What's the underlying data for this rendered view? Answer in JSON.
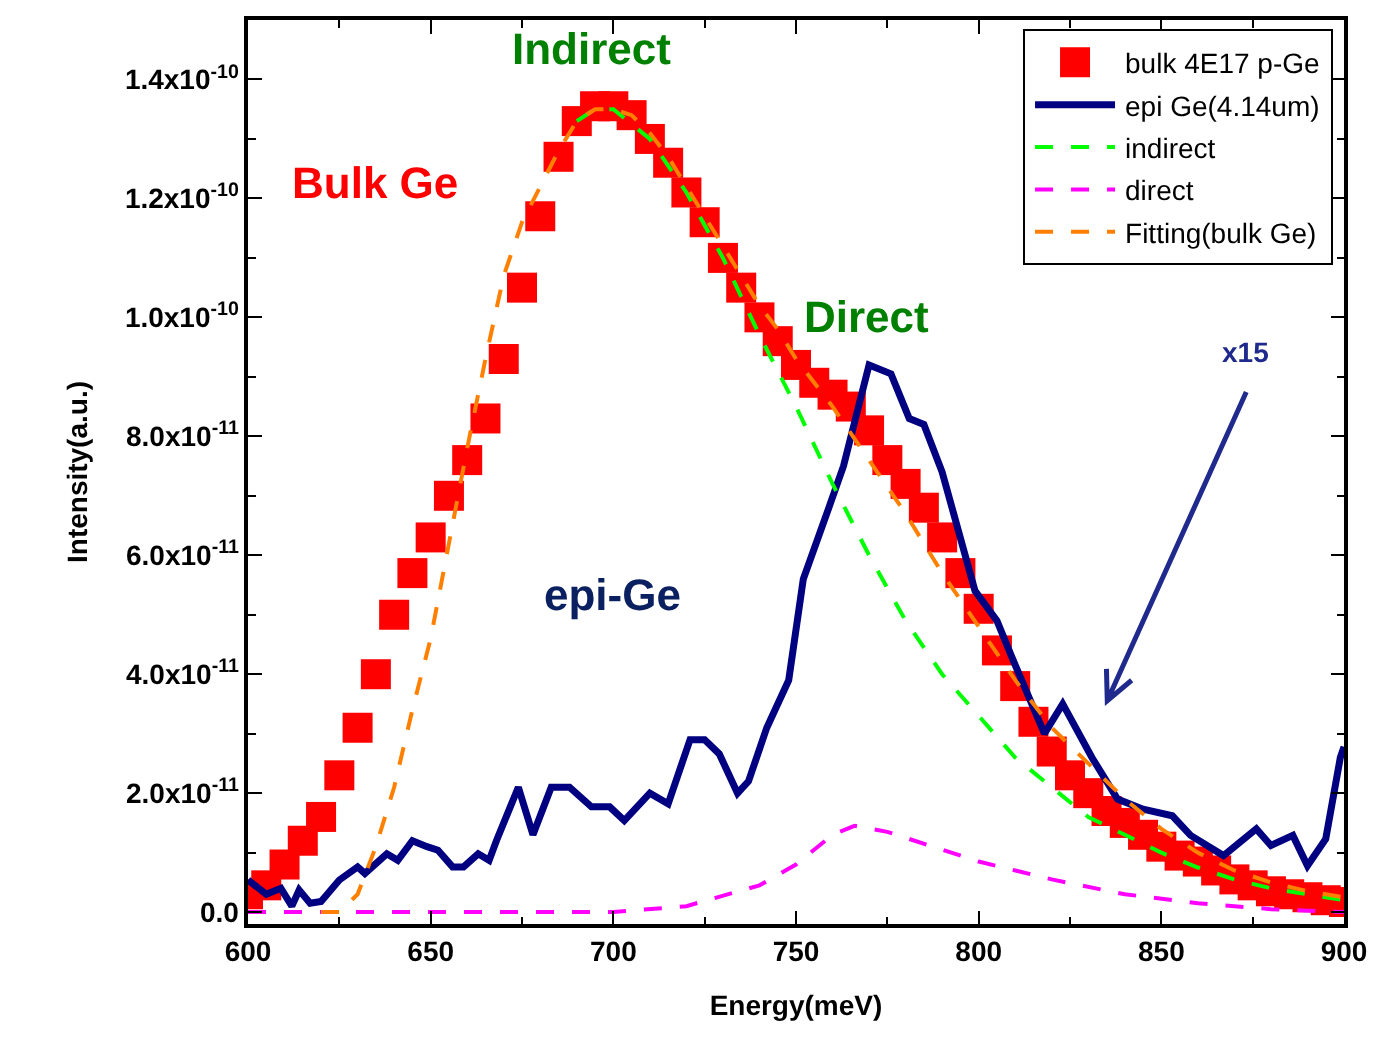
{
  "chart_data": {
    "type": "line",
    "xlabel": "Energy(meV)",
    "ylabel": "Intensity(a.u.)",
    "xlim": [
      600,
      900
    ],
    "xticks": [
      600,
      650,
      700,
      750,
      800,
      850,
      900
    ],
    "ylim": [
      -2e-12,
      1.5e-10
    ],
    "yticks": [
      {
        "value": 0,
        "label": "0.0"
      },
      {
        "value": 2e-11,
        "label": "2.0x10$^{-11}$"
      },
      {
        "value": 4e-11,
        "label": "4.0x10$^{-11}$"
      },
      {
        "value": 6e-11,
        "label": "6.0x10$^{-11}$"
      },
      {
        "value": 8e-11,
        "label": "8.0x10$^{-11}$"
      },
      {
        "value": 1e-10,
        "label": "1.0x10$^{-10}$"
      },
      {
        "value": 1.2e-10,
        "label": "1.2x10$^{-10}$"
      },
      {
        "value": 1.4e-10,
        "label": "1.4x10$^{-10}$"
      }
    ],
    "legend": "top right",
    "series": [
      {
        "name": "bulk 4E17 p-Ge",
        "type": "scatter",
        "marker": "square",
        "color": "#ff0000",
        "x": [
          600,
          605,
          610,
          615,
          620,
          625,
          630,
          635,
          640,
          645,
          650,
          655,
          660,
          665,
          670,
          675,
          680,
          685,
          690,
          695,
          700,
          705,
          710,
          715,
          720,
          725,
          730,
          735,
          740,
          745,
          750,
          755,
          760,
          765,
          770,
          775,
          780,
          785,
          790,
          795,
          800,
          805,
          810,
          815,
          820,
          825,
          830,
          835,
          840,
          845,
          850,
          855,
          860,
          865,
          870,
          875,
          880,
          885,
          890,
          895,
          900
        ],
        "values": [
          3e-12,
          4.5e-12,
          8e-12,
          1.2e-11,
          1.6e-11,
          2.3e-11,
          3.1e-11,
          4e-11,
          5e-11,
          5.7e-11,
          6.3e-11,
          7e-11,
          7.6e-11,
          8.3e-11,
          9.3e-11,
          1.05e-10,
          1.17e-10,
          1.27e-10,
          1.33e-10,
          1.355e-10,
          1.355e-10,
          1.34e-10,
          1.3e-10,
          1.26e-10,
          1.21e-10,
          1.16e-10,
          1.1e-10,
          1.05e-10,
          1e-10,
          9.6e-11,
          9.2e-11,
          8.9e-11,
          8.7e-11,
          8.5e-11,
          8.1e-11,
          7.6e-11,
          7.2e-11,
          6.8e-11,
          6.3e-11,
          5.7e-11,
          5.1e-11,
          4.4e-11,
          3.8e-11,
          3.2e-11,
          2.7e-11,
          2.3e-11,
          2e-11,
          1.7e-11,
          1.5e-11,
          1.3e-11,
          1.1e-11,
          9.5e-12,
          8.5e-12,
          7e-12,
          5.5e-12,
          4.5e-12,
          3.5e-12,
          3e-12,
          2.5e-12,
          2e-12,
          1.7e-12
        ]
      },
      {
        "name": "epi Ge(4.14um)",
        "line_style": "solid",
        "marker": "none",
        "color": "#000080",
        "x": [
          600,
          605,
          609,
          612,
          614,
          617,
          620,
          625,
          630,
          632,
          638,
          641,
          645,
          649,
          652,
          656,
          659,
          663,
          666,
          668,
          674,
          678,
          683,
          688,
          694,
          699,
          703,
          710,
          715,
          721,
          725,
          729,
          734,
          737,
          742,
          748,
          752,
          759,
          763,
          770,
          776,
          781,
          785,
          790,
          799,
          805,
          809,
          818,
          823,
          831,
          838,
          845,
          853,
          858,
          867,
          876,
          880,
          886,
          890,
          895,
          899,
          900
        ],
        "values": [
          5.4e-12,
          3e-12,
          4e-12,
          1e-12,
          3.7e-12,
          1.5e-12,
          1.8e-12,
          5.4e-12,
          7.6e-12,
          6.5e-12,
          9.8e-12,
          8.7e-12,
          1.2e-11,
          1.1e-11,
          1.04e-11,
          7.6e-12,
          7.6e-12,
          9.8e-12,
          8.7e-12,
          1.2e-11,
          2.1e-11,
          1.3e-11,
          2.1e-11,
          2.1e-11,
          1.77e-11,
          1.77e-11,
          1.54e-11,
          2e-11,
          1.82e-11,
          2.9e-11,
          2.9e-11,
          2.66e-11,
          2e-11,
          2.2e-11,
          3.1e-11,
          3.9e-11,
          5.6e-11,
          6.8e-11,
          7.5e-11,
          9.2e-11,
          9.05e-11,
          8.3e-11,
          8.2e-11,
          7.4e-11,
          5.4e-11,
          4.9e-11,
          4.3e-11,
          3e-11,
          3.5e-11,
          2.6e-11,
          1.9e-11,
          1.73e-11,
          1.62e-11,
          1.29e-11,
          9.5e-12,
          1.4e-11,
          1.12e-11,
          1.29e-11,
          7.8e-12,
          1.23e-11,
          2.6e-11,
          2.78e-11
        ]
      },
      {
        "name": "indirect",
        "line_style": "dashed",
        "marker": "none",
        "color": "#00ff00",
        "x": [
          690,
          695,
          700,
          710,
          720,
          730,
          740,
          750,
          760,
          770,
          780,
          790,
          800,
          810,
          820,
          830,
          840,
          850,
          860,
          870,
          880,
          890,
          900
        ],
        "values": [
          1.33e-10,
          1.35e-10,
          1.35e-10,
          1.3e-10,
          1.21e-10,
          1.1e-10,
          9.7e-11,
          8.5e-11,
          7.2e-11,
          6e-11,
          4.9e-11,
          4e-11,
          3.3e-11,
          2.6e-11,
          2.1e-11,
          1.6e-11,
          1.3e-11,
          1e-11,
          7.5e-12,
          5.5e-12,
          4e-12,
          3e-12,
          2e-12
        ]
      },
      {
        "name": "direct",
        "line_style": "dashed",
        "marker": "none",
        "color": "#ff00ff",
        "x": [
          600,
          700,
          720,
          740,
          750,
          760,
          766,
          775,
          790,
          800,
          820,
          840,
          860,
          880,
          900
        ],
        "values": [
          0,
          0,
          1e-12,
          4.5e-12,
          8e-12,
          1.3e-11,
          1.45e-11,
          1.35e-11,
          1.05e-11,
          8.5e-12,
          5.5e-12,
          3e-12,
          1.5e-12,
          5e-13,
          0
        ]
      },
      {
        "name": "Fitting(bulk Ge)",
        "line_style": "dashed",
        "marker": "none",
        "color": "#ff8000",
        "x": [
          620,
          625,
          630,
          635,
          640,
          645,
          650,
          655,
          660,
          665,
          670,
          675,
          680,
          685,
          690,
          695,
          700,
          705,
          710,
          715,
          720,
          725,
          730,
          735,
          740,
          745,
          750,
          760,
          770,
          780,
          790,
          800,
          810,
          820,
          830,
          840,
          850,
          860,
          870,
          880,
          890,
          900
        ],
        "values": [
          0,
          0,
          3e-12,
          1.1e-11,
          2.1e-11,
          3.4e-11,
          4.6e-11,
          6.2e-11,
          7.8e-11,
          9.3e-11,
          1.07e-10,
          1.16e-10,
          1.22e-10,
          1.28e-10,
          1.33e-10,
          1.35e-10,
          1.35e-10,
          1.34e-10,
          1.31e-10,
          1.27e-10,
          1.22e-10,
          1.17e-10,
          1.12e-10,
          1.07e-10,
          1.02e-10,
          9.8e-11,
          9.3e-11,
          8.5e-11,
          7.6e-11,
          6.7e-11,
          5.7e-11,
          4.8e-11,
          3.9e-11,
          3.1e-11,
          2.5e-11,
          1.9e-11,
          1.4e-11,
          1e-11,
          7e-12,
          5e-12,
          3.5e-12,
          2.5e-12
        ]
      }
    ],
    "annotations": [
      "Indirect",
      "Bulk Ge",
      "Direct",
      "epi-Ge",
      "x15"
    ]
  }
}
